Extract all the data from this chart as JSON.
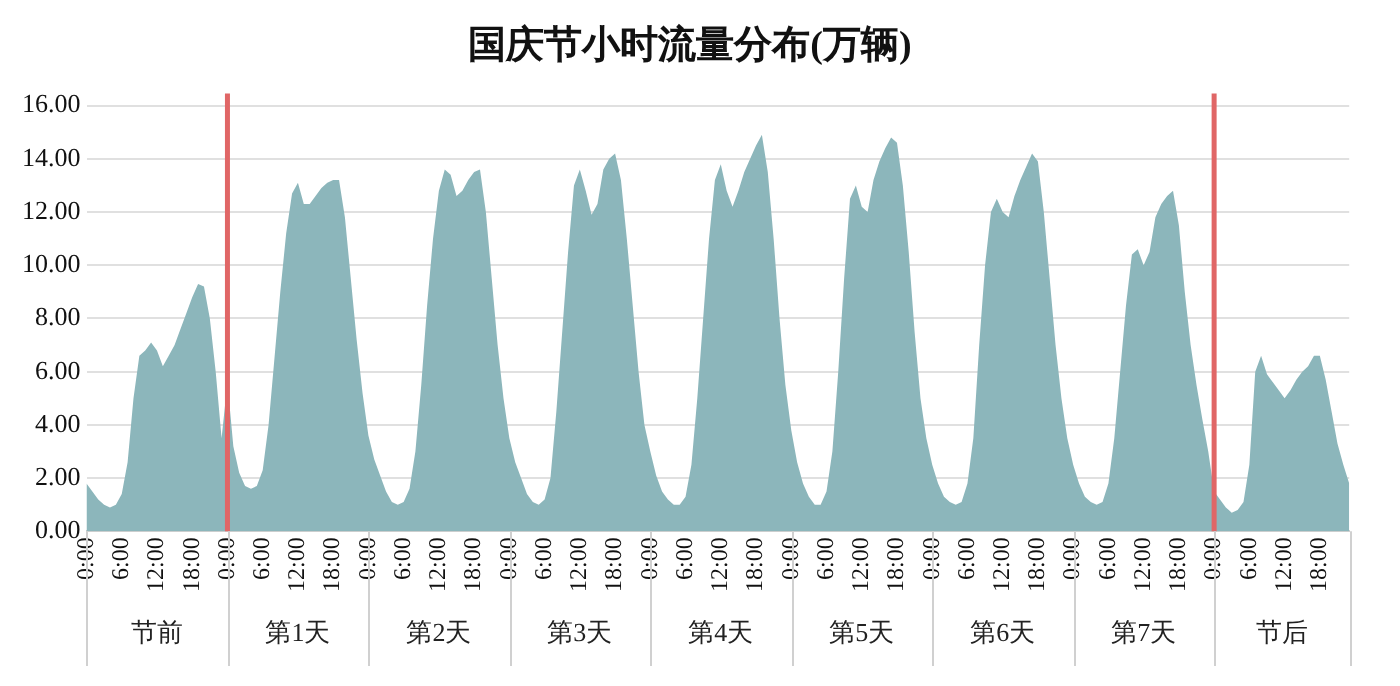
{
  "chart_data": {
    "type": "area",
    "title": "国庆节小时流量分布(万辆)",
    "categories": [
      "0:00",
      null,
      null,
      null,
      null,
      null,
      "6:00",
      null,
      null,
      null,
      null,
      null,
      "12:00",
      null,
      null,
      null,
      null,
      null,
      "18:00",
      null,
      null,
      null,
      null,
      null,
      "0:00",
      null,
      null,
      null,
      null,
      null,
      "6:00",
      null,
      null,
      null,
      null,
      null,
      "12:00",
      null,
      null,
      null,
      null,
      null,
      "18:00",
      null,
      null,
      null,
      null,
      null,
      "0:00",
      null,
      null,
      null,
      null,
      null,
      "6:00",
      null,
      null,
      null,
      null,
      null,
      "12:00",
      null,
      null,
      null,
      null,
      null,
      "18:00",
      null,
      null,
      null,
      null,
      null,
      "0:00",
      null,
      null,
      null,
      null,
      null,
      "6:00",
      null,
      null,
      null,
      null,
      null,
      "12:00",
      null,
      null,
      null,
      null,
      null,
      "18:00",
      null,
      null,
      null,
      null,
      null,
      "0:00",
      null,
      null,
      null,
      null,
      null,
      "6:00",
      null,
      null,
      null,
      null,
      null,
      "12:00",
      null,
      null,
      null,
      null,
      null,
      "18:00",
      null,
      null,
      null,
      null,
      null,
      "0:00",
      null,
      null,
      null,
      null,
      null,
      "6:00",
      null,
      null,
      null,
      null,
      null,
      "12:00",
      null,
      null,
      null,
      null,
      null,
      "18:00",
      null,
      null,
      null,
      null,
      null,
      "0:00",
      null,
      null,
      null,
      null,
      null,
      "6:00",
      null,
      null,
      null,
      null,
      null,
      "12:00",
      null,
      null,
      null,
      null,
      null,
      "18:00",
      null,
      null,
      null,
      null,
      null,
      "0:00",
      null,
      null,
      null,
      null,
      null,
      "6:00",
      null,
      null,
      null,
      null,
      null,
      "12:00",
      null,
      null,
      null,
      null,
      null,
      "18:00",
      null,
      null,
      null,
      null,
      null,
      "0:00",
      null,
      null,
      null,
      null,
      null,
      "6:00",
      null,
      null,
      null,
      null,
      null,
      "12:00",
      null,
      null,
      null,
      null,
      null,
      "18:00",
      null,
      null,
      null,
      null,
      null
    ],
    "series": [
      {
        "color": "#8cb6bb",
        "values": [
          1.8,
          1.5,
          1.2,
          1.0,
          0.9,
          1.0,
          1.4,
          2.6,
          5.0,
          6.6,
          6.8,
          7.1,
          6.8,
          6.2,
          6.6,
          7.0,
          7.6,
          8.2,
          8.8,
          9.3,
          9.2,
          8.0,
          6.0,
          3.5,
          5.6,
          3.2,
          2.2,
          1.7,
          1.6,
          1.7,
          2.3,
          4.0,
          6.5,
          9.0,
          11.2,
          12.7,
          13.1,
          12.3,
          12.3,
          12.6,
          12.9,
          13.1,
          13.2,
          13.2,
          11.8,
          9.5,
          7.2,
          5.2,
          3.6,
          2.7,
          2.1,
          1.5,
          1.1,
          1.0,
          1.1,
          1.6,
          3.0,
          5.5,
          8.5,
          11.0,
          12.8,
          13.6,
          13.4,
          12.6,
          12.8,
          13.2,
          13.5,
          13.6,
          12.0,
          9.5,
          7.0,
          5.0,
          3.5,
          2.6,
          2.0,
          1.4,
          1.1,
          1.0,
          1.2,
          2.0,
          4.5,
          7.5,
          10.5,
          13.0,
          13.6,
          12.8,
          11.9,
          12.3,
          13.6,
          14.0,
          14.2,
          13.2,
          11.0,
          8.5,
          6.0,
          4.0,
          3.0,
          2.1,
          1.5,
          1.2,
          1.0,
          1.0,
          1.3,
          2.5,
          5.0,
          8.0,
          11.0,
          13.2,
          13.8,
          12.8,
          12.2,
          12.8,
          13.5,
          14.0,
          14.5,
          14.9,
          13.5,
          11.0,
          8.0,
          5.5,
          3.8,
          2.6,
          1.8,
          1.3,
          1.0,
          1.0,
          1.5,
          3.0,
          6.0,
          9.5,
          12.5,
          13.0,
          12.2,
          12.0,
          13.2,
          13.9,
          14.4,
          14.8,
          14.6,
          13.0,
          10.5,
          7.5,
          5.0,
          3.5,
          2.5,
          1.8,
          1.3,
          1.1,
          1.0,
          1.1,
          1.8,
          3.5,
          7.0,
          10.0,
          12.0,
          12.5,
          12.0,
          11.8,
          12.6,
          13.2,
          13.7,
          14.2,
          13.9,
          12.0,
          9.5,
          7.0,
          5.0,
          3.5,
          2.5,
          1.8,
          1.3,
          1.1,
          1.0,
          1.1,
          1.8,
          3.5,
          6.0,
          8.5,
          10.4,
          10.6,
          10.0,
          10.5,
          11.8,
          12.3,
          12.6,
          12.8,
          11.5,
          9.0,
          7.0,
          5.5,
          4.2,
          3.0,
          1.5,
          1.2,
          0.9,
          0.7,
          0.8,
          1.1,
          2.5,
          6.0,
          6.6,
          5.9,
          5.6,
          5.3,
          5.0,
          5.3,
          5.7,
          6.0,
          6.2,
          6.6,
          6.6,
          5.7,
          4.5,
          3.3,
          2.5,
          1.8
        ]
      }
    ],
    "ylim": [
      0,
      16
    ],
    "yticks": [
      {
        "value": 0,
        "label": "0.00"
      },
      {
        "value": 2,
        "label": "2.00"
      },
      {
        "value": 4,
        "label": "4.00"
      },
      {
        "value": 6,
        "label": "6.00"
      },
      {
        "value": 8,
        "label": "8.00"
      },
      {
        "value": 10,
        "label": "10.00"
      },
      {
        "value": 12,
        "label": "12.00"
      },
      {
        "value": 14,
        "label": "14.00"
      },
      {
        "value": 16,
        "label": "16.00"
      }
    ],
    "grid": "y",
    "legend": false,
    "annotations": [
      "节前",
      "第1天",
      "第2天",
      "第3天",
      "第4天",
      "第5天",
      "第6天",
      "第7天",
      "节后"
    ]
  }
}
